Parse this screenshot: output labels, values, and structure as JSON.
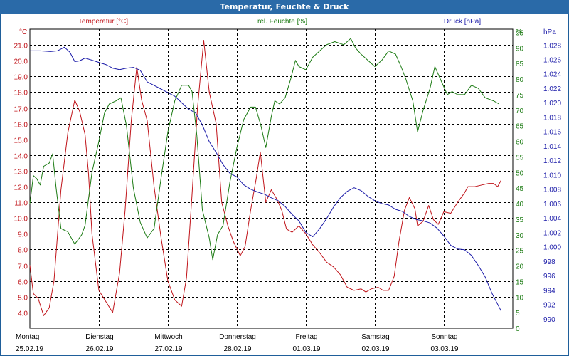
{
  "window": {
    "title": "Temperatur, Feuchte & Druck"
  },
  "colors": {
    "temperature": "#c0141a",
    "humidity": "#1b7a12",
    "pressure": "#1a1aa8",
    "grid": "#000000",
    "titlebar": "#2a6aa8"
  },
  "chart_data": {
    "type": "line",
    "title": "Temperatur, Feuchte & Druck",
    "legend": {
      "temperature": "Temperatur [°C]",
      "humidity": "rel. Feuchte [%]",
      "pressure": "Druck [hPa]"
    },
    "axis_units": {
      "left": "°C",
      "right_inner": "%",
      "right_outer": "hPa"
    },
    "x": {
      "range": [
        0,
        7
      ],
      "days": [
        {
          "name": "Montag",
          "date": "25.02.19"
        },
        {
          "name": "Dienstag",
          "date": "26.02.19"
        },
        {
          "name": "Mittwoch",
          "date": "27.02.19"
        },
        {
          "name": "Donnerstag",
          "date": "28.02.19"
        },
        {
          "name": "Freitag",
          "date": "01.03.19"
        },
        {
          "name": "Samstag",
          "date": "02.03.19"
        },
        {
          "name": "Sonntag",
          "date": "03.03.19"
        }
      ]
    },
    "y_left": {
      "min": 3.0,
      "max": 22.0,
      "ticks": [
        "4.0",
        "5.0",
        "6.0",
        "7.0",
        "8.0",
        "9.0",
        "10.0",
        "11.0",
        "12.0",
        "13.0",
        "14.0",
        "15.0",
        "16.0",
        "17.0",
        "18.0",
        "19.0",
        "20.0",
        "21.0"
      ]
    },
    "y_humidity": {
      "min": 0,
      "max": 96,
      "ticks": [
        "0",
        "5",
        "10",
        "15",
        "20",
        "25",
        "30",
        "35",
        "40",
        "45",
        "50",
        "55",
        "60",
        "65",
        "70",
        "75",
        "80",
        "85",
        "90",
        "95"
      ]
    },
    "y_pressure": {
      "min": 988.7,
      "max": 1030.2,
      "ticks": [
        "990",
        "992",
        "994",
        "996",
        "998",
        "1.000",
        "1.002",
        "1.004",
        "1.006",
        "1.008",
        "1.010",
        "1.012",
        "1.014",
        "1.016",
        "1.018",
        "1.020",
        "1.022",
        "1.024",
        "1.026",
        "1.028"
      ]
    },
    "series": [
      {
        "name": "Temperatur [°C]",
        "key": "temperature",
        "axis": "left",
        "points": [
          [
            0,
            7.0
          ],
          [
            0.05,
            5.2
          ],
          [
            0.12,
            4.9
          ],
          [
            0.2,
            3.8
          ],
          [
            0.28,
            4.3
          ],
          [
            0.35,
            6.0
          ],
          [
            0.45,
            11.8
          ],
          [
            0.55,
            15.4
          ],
          [
            0.65,
            17.5
          ],
          [
            0.72,
            16.8
          ],
          [
            0.8,
            15.3
          ],
          [
            0.85,
            12.8
          ],
          [
            0.9,
            9.0
          ],
          [
            1.0,
            5.4
          ],
          [
            1.1,
            4.7
          ],
          [
            1.2,
            4.0
          ],
          [
            1.3,
            6.5
          ],
          [
            1.38,
            10.5
          ],
          [
            1.47,
            16.2
          ],
          [
            1.55,
            19.6
          ],
          [
            1.62,
            17.5
          ],
          [
            1.7,
            16.2
          ],
          [
            1.8,
            12.0
          ],
          [
            1.9,
            8.8
          ],
          [
            2.0,
            6.0
          ],
          [
            2.1,
            4.8
          ],
          [
            2.2,
            4.4
          ],
          [
            2.27,
            6.2
          ],
          [
            2.35,
            11.5
          ],
          [
            2.43,
            17.0
          ],
          [
            2.52,
            21.3
          ],
          [
            2.6,
            18.0
          ],
          [
            2.7,
            16.0
          ],
          [
            2.78,
            11.0
          ],
          [
            2.87,
            9.5
          ],
          [
            2.95,
            8.5
          ],
          [
            3.05,
            7.6
          ],
          [
            3.12,
            8.2
          ],
          [
            3.2,
            10.5
          ],
          [
            3.28,
            12.5
          ],
          [
            3.34,
            14.2
          ],
          [
            3.42,
            11.0
          ],
          [
            3.5,
            11.8
          ],
          [
            3.58,
            11.2
          ],
          [
            3.65,
            10.5
          ],
          [
            3.72,
            9.3
          ],
          [
            3.8,
            9.1
          ],
          [
            3.9,
            9.5
          ],
          [
            4.0,
            9.0
          ],
          [
            4.1,
            8.3
          ],
          [
            4.2,
            7.8
          ],
          [
            4.3,
            7.2
          ],
          [
            4.4,
            6.9
          ],
          [
            4.5,
            6.4
          ],
          [
            4.6,
            5.6
          ],
          [
            4.7,
            5.4
          ],
          [
            4.8,
            5.5
          ],
          [
            4.87,
            5.3
          ],
          [
            4.95,
            5.5
          ],
          [
            5.05,
            5.6
          ],
          [
            5.12,
            5.4
          ],
          [
            5.2,
            5.4
          ],
          [
            5.28,
            6.3
          ],
          [
            5.35,
            8.5
          ],
          [
            5.43,
            10.5
          ],
          [
            5.5,
            11.3
          ],
          [
            5.58,
            10.6
          ],
          [
            5.62,
            9.5
          ],
          [
            5.7,
            9.8
          ],
          [
            5.78,
            10.8
          ],
          [
            5.85,
            9.9
          ],
          [
            5.92,
            9.6
          ],
          [
            6.0,
            10.4
          ],
          [
            6.1,
            10.3
          ],
          [
            6.2,
            11.0
          ],
          [
            6.3,
            11.6
          ],
          [
            6.35,
            12.0
          ],
          [
            6.45,
            12.0
          ],
          [
            6.55,
            12.1
          ],
          [
            6.65,
            12.2
          ],
          [
            6.72,
            12.2
          ],
          [
            6.78,
            12.0
          ],
          [
            6.83,
            12.4
          ]
        ]
      },
      {
        "name": "rel. Feuchte [%]",
        "key": "humidity",
        "axis": "humidity",
        "points": [
          [
            0,
            40
          ],
          [
            0.05,
            49
          ],
          [
            0.1,
            48
          ],
          [
            0.15,
            46
          ],
          [
            0.2,
            52
          ],
          [
            0.28,
            53
          ],
          [
            0.33,
            56
          ],
          [
            0.38,
            45
          ],
          [
            0.45,
            32
          ],
          [
            0.55,
            31
          ],
          [
            0.65,
            27
          ],
          [
            0.75,
            30
          ],
          [
            0.8,
            33
          ],
          [
            0.9,
            50
          ],
          [
            1.0,
            60
          ],
          [
            1.08,
            69
          ],
          [
            1.15,
            72
          ],
          [
            1.25,
            73
          ],
          [
            1.32,
            74
          ],
          [
            1.4,
            65
          ],
          [
            1.5,
            45
          ],
          [
            1.6,
            34
          ],
          [
            1.7,
            29
          ],
          [
            1.8,
            32
          ],
          [
            1.9,
            48
          ],
          [
            2.0,
            63
          ],
          [
            2.1,
            73
          ],
          [
            2.2,
            78
          ],
          [
            2.3,
            78
          ],
          [
            2.35,
            76
          ],
          [
            2.42,
            62
          ],
          [
            2.5,
            38
          ],
          [
            2.6,
            29
          ],
          [
            2.65,
            22
          ],
          [
            2.72,
            30
          ],
          [
            2.8,
            33
          ],
          [
            2.9,
            47
          ],
          [
            3.0,
            58
          ],
          [
            3.1,
            67
          ],
          [
            3.2,
            71
          ],
          [
            3.27,
            71
          ],
          [
            3.35,
            65
          ],
          [
            3.42,
            58
          ],
          [
            3.5,
            68
          ],
          [
            3.55,
            73
          ],
          [
            3.62,
            72
          ],
          [
            3.7,
            74
          ],
          [
            3.78,
            80
          ],
          [
            3.85,
            86
          ],
          [
            3.9,
            84
          ],
          [
            4.0,
            83
          ],
          [
            4.1,
            87
          ],
          [
            4.2,
            89
          ],
          [
            4.3,
            91
          ],
          [
            4.42,
            92
          ],
          [
            4.55,
            91
          ],
          [
            4.65,
            93
          ],
          [
            4.72,
            90
          ],
          [
            4.8,
            88
          ],
          [
            4.9,
            86
          ],
          [
            5.0,
            84
          ],
          [
            5.1,
            86
          ],
          [
            5.2,
            89
          ],
          [
            5.3,
            88
          ],
          [
            5.38,
            84
          ],
          [
            5.45,
            80
          ],
          [
            5.55,
            73
          ],
          [
            5.62,
            63
          ],
          [
            5.7,
            70
          ],
          [
            5.8,
            77
          ],
          [
            5.87,
            84
          ],
          [
            5.95,
            80
          ],
          [
            6.05,
            75
          ],
          [
            6.12,
            76
          ],
          [
            6.2,
            75
          ],
          [
            6.3,
            75
          ],
          [
            6.4,
            78
          ],
          [
            6.5,
            77
          ],
          [
            6.6,
            74
          ],
          [
            6.72,
            73
          ],
          [
            6.8,
            72
          ]
        ]
      },
      {
        "name": "Druck [hPa]",
        "key": "pressure",
        "axis": "pressure",
        "points": [
          [
            0,
            1027.2
          ],
          [
            0.15,
            1027.2
          ],
          [
            0.3,
            1027.1
          ],
          [
            0.4,
            1027.2
          ],
          [
            0.5,
            1027.7
          ],
          [
            0.58,
            1027.0
          ],
          [
            0.65,
            1025.7
          ],
          [
            0.72,
            1025.8
          ],
          [
            0.8,
            1026.2
          ],
          [
            0.9,
            1025.9
          ],
          [
            1.0,
            1025.6
          ],
          [
            1.1,
            1025.3
          ],
          [
            1.2,
            1024.8
          ],
          [
            1.3,
            1024.6
          ],
          [
            1.4,
            1024.8
          ],
          [
            1.5,
            1024.9
          ],
          [
            1.6,
            1024.5
          ],
          [
            1.7,
            1022.9
          ],
          [
            1.8,
            1022.4
          ],
          [
            1.9,
            1021.9
          ],
          [
            2.0,
            1021.4
          ],
          [
            2.1,
            1020.9
          ],
          [
            2.2,
            1020.0
          ],
          [
            2.3,
            1019.1
          ],
          [
            2.4,
            1018.6
          ],
          [
            2.5,
            1016.9
          ],
          [
            2.6,
            1014.6
          ],
          [
            2.7,
            1013.1
          ],
          [
            2.8,
            1011.4
          ],
          [
            2.9,
            1010.2
          ],
          [
            3.0,
            1009.7
          ],
          [
            3.1,
            1008.6
          ],
          [
            3.2,
            1008.0
          ],
          [
            3.3,
            1007.6
          ],
          [
            3.4,
            1007.3
          ],
          [
            3.5,
            1006.8
          ],
          [
            3.6,
            1006.4
          ],
          [
            3.7,
            1005.6
          ],
          [
            3.8,
            1004.5
          ],
          [
            3.9,
            1003.6
          ],
          [
            4.0,
            1002.0
          ],
          [
            4.1,
            1001.4
          ],
          [
            4.2,
            1002.5
          ],
          [
            4.3,
            1003.9
          ],
          [
            4.4,
            1005.5
          ],
          [
            4.5,
            1006.8
          ],
          [
            4.6,
            1007.7
          ],
          [
            4.7,
            1008.2
          ],
          [
            4.8,
            1007.8
          ],
          [
            4.9,
            1007.0
          ],
          [
            5.0,
            1006.4
          ],
          [
            5.1,
            1006.0
          ],
          [
            5.2,
            1005.8
          ],
          [
            5.3,
            1005.2
          ],
          [
            5.4,
            1004.9
          ],
          [
            5.5,
            1004.2
          ],
          [
            5.6,
            1003.8
          ],
          [
            5.7,
            1003.6
          ],
          [
            5.8,
            1003.3
          ],
          [
            5.9,
            1002.6
          ],
          [
            6.0,
            1001.5
          ],
          [
            6.1,
            1000.2
          ],
          [
            6.2,
            999.7
          ],
          [
            6.3,
            999.6
          ],
          [
            6.4,
            998.8
          ],
          [
            6.5,
            997.4
          ],
          [
            6.6,
            995.8
          ],
          [
            6.7,
            993.5
          ],
          [
            6.83,
            991.1
          ]
        ]
      }
    ]
  }
}
